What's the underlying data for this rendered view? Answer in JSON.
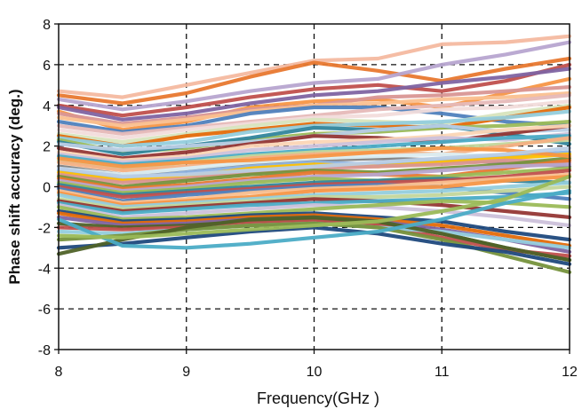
{
  "chart_data": {
    "type": "line",
    "xlabel": "Frequency(GHz )",
    "ylabel": "Phase shift accuracy (deg.)",
    "xlim": [
      8,
      12
    ],
    "ylim": [
      -8,
      8
    ],
    "x_ticks": [
      "8",
      "9",
      "10",
      "11",
      "12"
    ],
    "y_ticks": [
      "8",
      "6",
      "4",
      "2",
      "0",
      "-2",
      "-4",
      "-6",
      "-8"
    ],
    "grid": "dashed, x at 9/10/11, y at -6/-4/-2/2/4/6",
    "x": [
      8,
      8.5,
      9,
      9.5,
      10,
      10.5,
      11,
      11.5,
      12
    ],
    "series": [
      {
        "color": "#f4b9a0",
        "values": [
          4.7,
          4.4,
          5.0,
          5.6,
          6.2,
          6.3,
          7.0,
          7.1,
          7.4
        ]
      },
      {
        "color": "#e8782f",
        "values": [
          4.5,
          4.1,
          4.6,
          5.4,
          6.1,
          5.7,
          5.2,
          5.8,
          6.3
        ]
      },
      {
        "color": "#b7a5d0",
        "values": [
          4.3,
          3.8,
          4.2,
          4.7,
          5.1,
          5.3,
          6.0,
          6.5,
          7.1
        ]
      },
      {
        "color": "#c0504d",
        "values": [
          4.0,
          3.5,
          3.9,
          4.4,
          4.8,
          5.0,
          4.7,
          5.2,
          6.0
        ]
      },
      {
        "color": "#8064a2",
        "values": [
          3.9,
          3.3,
          3.6,
          4.1,
          4.5,
          4.7,
          5.1,
          5.4,
          5.8
        ]
      },
      {
        "color": "#f79646",
        "values": [
          3.7,
          2.8,
          3.2,
          3.9,
          4.2,
          4.3,
          3.9,
          4.6,
          5.3
        ]
      },
      {
        "color": "#d99694",
        "values": [
          3.6,
          3.1,
          3.4,
          3.8,
          4.0,
          4.4,
          4.5,
          4.7,
          4.9
        ]
      },
      {
        "color": "#fac090",
        "values": [
          3.4,
          3.0,
          3.3,
          3.7,
          4.0,
          4.1,
          4.3,
          4.4,
          4.6
        ]
      },
      {
        "color": "#4f81bd",
        "values": [
          3.2,
          2.7,
          3.0,
          3.6,
          3.9,
          3.9,
          3.6,
          3.2,
          3.0
        ]
      },
      {
        "color": "#e6b9b8",
        "values": [
          3.0,
          2.6,
          2.9,
          3.2,
          3.5,
          3.8,
          4.0,
          4.2,
          4.5
        ]
      },
      {
        "color": "#f2dcdb",
        "values": [
          2.8,
          2.4,
          2.8,
          3.1,
          3.4,
          3.5,
          3.8,
          3.9,
          4.2
        ]
      },
      {
        "color": "#d7e4bd",
        "values": [
          2.6,
          2.2,
          2.6,
          3.0,
          3.3,
          3.2,
          3.1,
          3.6,
          4.0
        ]
      },
      {
        "color": "#e46c0a",
        "values": [
          2.5,
          2.0,
          2.5,
          2.8,
          3.1,
          3.0,
          2.9,
          3.4,
          3.9
        ]
      },
      {
        "color": "#93cddd",
        "values": [
          2.4,
          2.0,
          2.2,
          2.7,
          3.0,
          3.1,
          3.2,
          3.4,
          3.7
        ]
      },
      {
        "color": "#9bbb59",
        "values": [
          2.3,
          1.7,
          1.9,
          2.3,
          2.6,
          2.7,
          2.9,
          3.0,
          3.2
        ]
      },
      {
        "color": "#31859c",
        "values": [
          2.2,
          1.6,
          2.0,
          2.4,
          2.9,
          2.8,
          3.0,
          2.6,
          2.1
        ]
      },
      {
        "color": "#b9cde5",
        "values": [
          2.1,
          1.8,
          2.0,
          2.2,
          2.5,
          2.8,
          3.0,
          2.7,
          2.8
        ]
      },
      {
        "color": "#953735",
        "values": [
          1.9,
          1.4,
          1.7,
          2.1,
          2.5,
          2.4,
          2.2,
          2.6,
          3.0
        ]
      },
      {
        "color": "#fbd5b5",
        "values": [
          1.7,
          1.3,
          1.5,
          2.0,
          2.2,
          2.3,
          2.5,
          2.8,
          3.0
        ]
      },
      {
        "color": "#ccc1da",
        "values": [
          1.6,
          1.2,
          1.4,
          1.8,
          2.0,
          2.2,
          2.4,
          2.3,
          2.6
        ]
      },
      {
        "color": "#4bacc6",
        "values": [
          1.5,
          1.1,
          1.3,
          1.6,
          1.8,
          2.0,
          2.2,
          2.4,
          2.5
        ]
      },
      {
        "color": "#c3d69b",
        "values": [
          1.3,
          0.9,
          1.2,
          1.5,
          1.7,
          1.8,
          1.9,
          2.1,
          2.3
        ]
      },
      {
        "color": "#f4b083",
        "values": [
          1.2,
          0.8,
          1.0,
          1.4,
          1.6,
          1.7,
          1.6,
          2.0,
          2.4
        ]
      },
      {
        "color": "#7f7f7f",
        "values": [
          1.0,
          0.6,
          0.8,
          1.1,
          1.3,
          1.4,
          1.3,
          1.2,
          1.0
        ]
      },
      {
        "color": "#dbeef3",
        "values": [
          0.9,
          0.6,
          0.9,
          1.2,
          1.4,
          1.5,
          1.6,
          1.5,
          1.4
        ]
      },
      {
        "color": "#8db3e2",
        "values": [
          0.8,
          0.4,
          0.7,
          1.0,
          1.2,
          1.1,
          1.3,
          1.5,
          1.7
        ]
      },
      {
        "color": "#ffc000",
        "values": [
          0.7,
          0.3,
          0.5,
          0.9,
          1.1,
          1.0,
          1.2,
          1.4,
          1.6
        ]
      },
      {
        "color": "#d99694",
        "values": [
          0.6,
          0.2,
          0.4,
          0.7,
          0.9,
          1.0,
          1.1,
          1.3,
          1.2
        ]
      },
      {
        "color": "#76923c",
        "values": [
          0.5,
          0.0,
          0.3,
          0.6,
          0.8,
          0.7,
          0.9,
          1.1,
          1.4
        ]
      },
      {
        "color": "#e8782f",
        "values": [
          0.4,
          -0.1,
          0.1,
          0.4,
          0.7,
          0.6,
          0.5,
          0.9,
          1.3
        ]
      },
      {
        "color": "#b7a5d0",
        "values": [
          0.3,
          -0.2,
          0.0,
          0.3,
          0.5,
          0.6,
          0.8,
          1.0,
          1.1
        ]
      },
      {
        "color": "#9bbb59",
        "values": [
          0.2,
          -0.3,
          -0.1,
          0.2,
          0.4,
          0.3,
          0.5,
          0.7,
          0.9
        ]
      },
      {
        "color": "#31859c",
        "values": [
          0.1,
          -0.4,
          -0.2,
          0.0,
          0.2,
          0.3,
          0.4,
          0.3,
          0.2
        ]
      },
      {
        "color": "#c0504d",
        "values": [
          0.0,
          -0.5,
          -0.3,
          -0.1,
          0.1,
          0.2,
          0.3,
          0.5,
          0.8
        ]
      },
      {
        "color": "#4f81bd",
        "values": [
          -0.1,
          -0.7,
          -0.4,
          -0.2,
          0.0,
          0.1,
          0.0,
          -0.3,
          -0.6
        ]
      },
      {
        "color": "#fac090",
        "values": [
          -0.2,
          -0.8,
          -0.6,
          -0.3,
          -0.1,
          0.0,
          0.2,
          0.4,
          0.6
        ]
      },
      {
        "color": "#f79646",
        "values": [
          -0.3,
          -0.9,
          -0.7,
          -0.5,
          -0.2,
          -0.1,
          0.0,
          0.3,
          0.5
        ]
      },
      {
        "color": "#93cddd",
        "values": [
          -0.4,
          -1.0,
          -0.8,
          -0.6,
          -0.4,
          -0.3,
          -0.2,
          0.0,
          0.2
        ]
      },
      {
        "color": "#c3d69b",
        "values": [
          -0.6,
          -1.1,
          -0.9,
          -0.7,
          -0.5,
          -0.5,
          -0.4,
          -0.2,
          0.0
        ]
      },
      {
        "color": "#953735",
        "values": [
          -0.7,
          -1.2,
          -1.0,
          -0.8,
          -0.6,
          -0.7,
          -0.9,
          -1.2,
          -1.5
        ]
      },
      {
        "color": "#4bacc6",
        "values": [
          -0.8,
          -1.3,
          -1.1,
          -0.9,
          -0.8,
          -0.7,
          -0.6,
          -0.5,
          -0.3
        ]
      },
      {
        "color": "#ccc1da",
        "values": [
          -0.9,
          -1.5,
          -1.3,
          -1.1,
          -0.9,
          -1.0,
          -1.2,
          -1.5,
          -1.9
        ]
      },
      {
        "color": "#9bbb59",
        "values": [
          -1.0,
          -1.6,
          -1.5,
          -1.3,
          -1.1,
          -0.9,
          -0.7,
          -0.8,
          -1.0
        ]
      },
      {
        "color": "#1f497d",
        "values": [
          -1.2,
          -1.7,
          -1.6,
          -1.4,
          -1.3,
          -1.5,
          -1.7,
          -2.2,
          -2.6
        ]
      },
      {
        "color": "#e46c0a",
        "values": [
          -1.3,
          -1.8,
          -1.7,
          -1.5,
          -1.4,
          -1.6,
          -1.9,
          -2.4,
          -2.9
        ]
      },
      {
        "color": "#8064a2",
        "values": [
          -1.5,
          -1.9,
          -1.8,
          -1.6,
          -1.5,
          -1.7,
          -2.1,
          -2.6,
          -3.2
        ]
      },
      {
        "color": "#4f6228",
        "values": [
          -1.8,
          -2.0,
          -1.9,
          -1.7,
          -1.6,
          -1.8,
          -2.3,
          -3.0,
          -3.6
        ]
      },
      {
        "color": "#c0504d",
        "values": [
          -2.0,
          -2.1,
          -2.0,
          -1.8,
          -1.7,
          -1.9,
          -2.5,
          -3.1,
          -3.4
        ]
      },
      {
        "color": "#93cddd",
        "values": [
          -2.2,
          -2.3,
          -2.1,
          -1.9,
          -1.8,
          -2.0,
          -2.2,
          -2.6,
          -3.0
        ]
      },
      {
        "color": "#76923c",
        "values": [
          -2.6,
          -2.4,
          -2.1,
          -1.9,
          -1.8,
          -2.0,
          -2.6,
          -3.4,
          -4.2
        ]
      },
      {
        "color": "#1f497d",
        "values": [
          -3.0,
          -2.8,
          -2.5,
          -2.2,
          -2.0,
          -2.3,
          -2.8,
          -3.2,
          -3.8
        ]
      },
      {
        "color": "#4f6228",
        "values": [
          -3.3,
          -2.6,
          -2.0,
          -1.6,
          -1.5,
          -1.7,
          -2.3,
          -3.0,
          -3.6
        ]
      },
      {
        "color": "#4bacc6",
        "values": [
          -1.6,
          -2.9,
          -3.0,
          -2.8,
          -2.5,
          -2.2,
          -1.6,
          -0.8,
          -0.2
        ]
      },
      {
        "color": "#9bbb59",
        "values": [
          -2.4,
          -2.5,
          -2.3,
          -2.1,
          -1.9,
          -1.7,
          -1.2,
          -0.6,
          0.5
        ]
      },
      {
        "color": "#f79646",
        "values": [
          1.4,
          1.0,
          1.2,
          1.3,
          1.5,
          1.7,
          1.9,
          1.8,
          1.5
        ]
      },
      {
        "color": "#b9cde5",
        "values": [
          0.9,
          0.5,
          0.6,
          0.8,
          1.0,
          1.2,
          1.4,
          1.6,
          1.9
        ]
      }
    ]
  }
}
